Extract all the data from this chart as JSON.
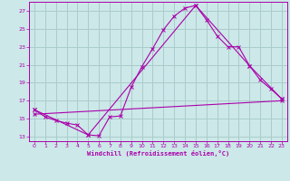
{
  "xlabel": "Windchill (Refroidissement éolien,°C)",
  "ylabel": "",
  "background_color": "#cce8e8",
  "grid_color": "#aacccc",
  "line_color": "#aa00aa",
  "xlim": [
    -0.5,
    23.5
  ],
  "ylim": [
    12.5,
    28.0
  ],
  "yticks": [
    13,
    15,
    17,
    19,
    21,
    23,
    25,
    27
  ],
  "xticks": [
    0,
    1,
    2,
    3,
    4,
    5,
    6,
    7,
    8,
    9,
    10,
    11,
    12,
    13,
    14,
    15,
    16,
    17,
    18,
    19,
    20,
    21,
    22,
    23
  ],
  "line1_x": [
    0,
    1,
    2,
    3,
    4,
    5,
    6,
    7,
    8,
    9,
    10,
    11,
    12,
    13,
    14,
    15,
    16,
    17,
    18,
    19,
    20,
    21,
    22,
    23
  ],
  "line1_y": [
    16.0,
    15.2,
    14.8,
    14.5,
    14.3,
    13.2,
    13.1,
    15.2,
    15.3,
    18.5,
    20.8,
    22.8,
    24.9,
    26.4,
    27.3,
    27.6,
    26.0,
    24.2,
    23.0,
    23.0,
    20.9,
    19.3,
    18.3,
    17.2
  ],
  "line2_x": [
    0,
    5,
    15,
    20,
    23
  ],
  "line2_y": [
    16.0,
    13.2,
    27.6,
    20.9,
    17.2
  ],
  "line3_x": [
    0,
    23
  ],
  "line3_y": [
    15.5,
    17.0
  ]
}
